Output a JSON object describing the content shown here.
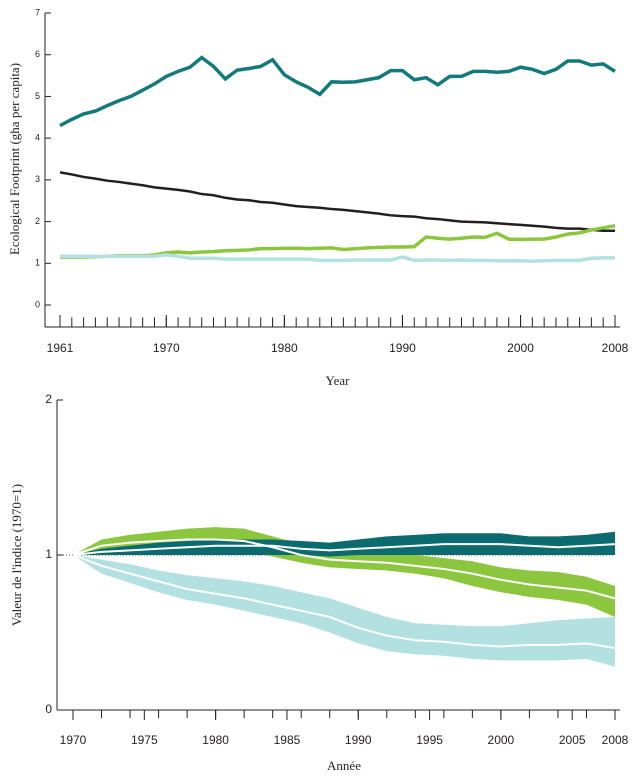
{
  "chart_data": [
    {
      "type": "line",
      "y_label": "Ecological Footprint (gha per capita)",
      "x_label": "Year",
      "x": [
        1961,
        1962,
        1963,
        1964,
        1965,
        1966,
        1967,
        1968,
        1969,
        1970,
        1971,
        1972,
        1973,
        1974,
        1975,
        1976,
        1977,
        1978,
        1979,
        1980,
        1981,
        1982,
        1983,
        1984,
        1985,
        1986,
        1987,
        1988,
        1989,
        1990,
        1991,
        1992,
        1993,
        1994,
        1995,
        1996,
        1997,
        1998,
        1999,
        2000,
        2001,
        2002,
        2003,
        2004,
        2005,
        2006,
        2007,
        2008
      ],
      "series": [
        {
          "color": "#127a7a",
          "values": [
            4.3,
            4.45,
            4.58,
            4.65,
            4.78,
            4.9,
            5.0,
            5.15,
            5.3,
            5.48,
            5.6,
            5.7,
            5.93,
            5.72,
            5.42,
            5.63,
            5.67,
            5.72,
            5.88,
            5.52,
            5.35,
            5.22,
            5.05,
            5.35,
            5.34,
            5.35,
            5.4,
            5.45,
            5.62,
            5.62,
            5.4,
            5.45,
            5.28,
            5.48,
            5.48,
            5.6,
            5.6,
            5.58,
            5.6,
            5.7,
            5.65,
            5.55,
            5.65,
            5.85,
            5.85,
            5.75,
            5.78,
            5.6
          ]
        },
        {
          "color": "#231f20",
          "values": [
            3.18,
            3.13,
            3.07,
            3.03,
            2.98,
            2.95,
            2.91,
            2.87,
            2.82,
            2.79,
            2.76,
            2.72,
            2.66,
            2.63,
            2.57,
            2.53,
            2.51,
            2.47,
            2.45,
            2.41,
            2.37,
            2.35,
            2.33,
            2.3,
            2.28,
            2.25,
            2.22,
            2.19,
            2.15,
            2.13,
            2.12,
            2.08,
            2.06,
            2.03,
            2.0,
            1.99,
            1.98,
            1.96,
            1.94,
            1.92,
            1.9,
            1.88,
            1.85,
            1.83,
            1.83,
            1.8,
            1.78,
            1.78
          ]
        },
        {
          "color": "#8cc63f",
          "values": [
            1.15,
            1.15,
            1.15,
            1.16,
            1.17,
            1.18,
            1.18,
            1.18,
            1.2,
            1.25,
            1.27,
            1.25,
            1.27,
            1.28,
            1.3,
            1.31,
            1.32,
            1.35,
            1.35,
            1.36,
            1.36,
            1.35,
            1.36,
            1.37,
            1.33,
            1.35,
            1.37,
            1.38,
            1.39,
            1.39,
            1.4,
            1.63,
            1.6,
            1.58,
            1.6,
            1.63,
            1.62,
            1.72,
            1.58,
            1.57,
            1.58,
            1.58,
            1.63,
            1.7,
            1.73,
            1.8,
            1.85,
            1.9
          ]
        },
        {
          "color": "#b3e0e0",
          "values": [
            1.17,
            1.17,
            1.17,
            1.17,
            1.17,
            1.17,
            1.17,
            1.17,
            1.17,
            1.2,
            1.17,
            1.12,
            1.12,
            1.12,
            1.1,
            1.1,
            1.1,
            1.1,
            1.1,
            1.1,
            1.1,
            1.1,
            1.07,
            1.07,
            1.07,
            1.08,
            1.08,
            1.08,
            1.08,
            1.15,
            1.07,
            1.08,
            1.08,
            1.07,
            1.08,
            1.07,
            1.07,
            1.06,
            1.06,
            1.06,
            1.05,
            1.06,
            1.07,
            1.07,
            1.07,
            1.12,
            1.13,
            1.13
          ]
        }
      ],
      "xlim": [
        1961,
        2008
      ],
      "xticks": [
        1961,
        1970,
        1980,
        1990,
        2000,
        2008
      ],
      "ylim": [
        0,
        7
      ],
      "yticks": [
        0,
        1,
        2,
        3,
        4,
        5,
        6,
        7
      ]
    },
    {
      "type": "band",
      "y_label": "Valeur de l'indice (1970=1)",
      "x_label": "Année",
      "x": [
        1970,
        1972,
        1974,
        1976,
        1978,
        1980,
        1982,
        1984,
        1986,
        1988,
        1990,
        1992,
        1994,
        1996,
        1998,
        2000,
        2002,
        2004,
        2006,
        2008
      ],
      "series": [
        {
          "color": "#b3e0e0",
          "values": [
            1.0,
            0.93,
            0.88,
            0.83,
            0.78,
            0.75,
            0.72,
            0.68,
            0.64,
            0.6,
            0.53,
            0.48,
            0.45,
            0.44,
            0.42,
            0.41,
            0.42,
            0.42,
            0.43,
            0.4
          ],
          "lower": [
            1.0,
            0.88,
            0.82,
            0.76,
            0.71,
            0.68,
            0.64,
            0.6,
            0.56,
            0.5,
            0.43,
            0.38,
            0.36,
            0.35,
            0.33,
            0.32,
            0.32,
            0.32,
            0.33,
            0.28
          ],
          "upper": [
            1.0,
            0.97,
            0.94,
            0.9,
            0.87,
            0.85,
            0.83,
            0.8,
            0.76,
            0.72,
            0.66,
            0.6,
            0.56,
            0.55,
            0.54,
            0.54,
            0.56,
            0.58,
            0.59,
            0.6
          ]
        },
        {
          "color": "#8cc63f",
          "values": [
            1.0,
            1.06,
            1.08,
            1.09,
            1.1,
            1.1,
            1.09,
            1.05,
            1.0,
            0.97,
            0.96,
            0.95,
            0.93,
            0.91,
            0.88,
            0.84,
            0.81,
            0.79,
            0.77,
            0.72
          ],
          "lower": [
            1.0,
            1.02,
            1.04,
            1.05,
            1.05,
            1.04,
            1.02,
            0.99,
            0.95,
            0.92,
            0.91,
            0.9,
            0.88,
            0.85,
            0.8,
            0.76,
            0.73,
            0.71,
            0.68,
            0.6
          ],
          "upper": [
            1.0,
            1.1,
            1.13,
            1.15,
            1.17,
            1.18,
            1.17,
            1.12,
            1.07,
            1.03,
            1.02,
            1.01,
            1.0,
            0.98,
            0.96,
            0.92,
            0.9,
            0.89,
            0.86,
            0.8
          ]
        },
        {
          "color": "#0b6b6e",
          "values": [
            1.0,
            1.02,
            1.03,
            1.04,
            1.05,
            1.06,
            1.06,
            1.06,
            1.04,
            1.03,
            1.04,
            1.05,
            1.06,
            1.07,
            1.07,
            1.07,
            1.06,
            1.05,
            1.06,
            1.07
          ],
          "lower": [
            1.0,
            1.0,
            1.0,
            1.0,
            1.0,
            1.0,
            1.0,
            1.0,
            1.0,
            0.99,
            1.0,
            1.0,
            1.0,
            1.0,
            1.0,
            1.0,
            1.0,
            1.0,
            1.0,
            1.0
          ],
          "upper": [
            1.0,
            1.04,
            1.06,
            1.08,
            1.09,
            1.1,
            1.1,
            1.1,
            1.09,
            1.08,
            1.1,
            1.12,
            1.13,
            1.14,
            1.14,
            1.14,
            1.12,
            1.12,
            1.13,
            1.15
          ]
        }
      ],
      "mean_color": "#ffffff",
      "xlim": [
        1970,
        2008
      ],
      "xticks": [
        1970,
        1975,
        1980,
        1985,
        1990,
        1995,
        2000,
        2005,
        2008
      ],
      "ylim": [
        0,
        2
      ],
      "yticks": [
        0,
        1,
        2
      ],
      "reference_line": 1
    }
  ]
}
